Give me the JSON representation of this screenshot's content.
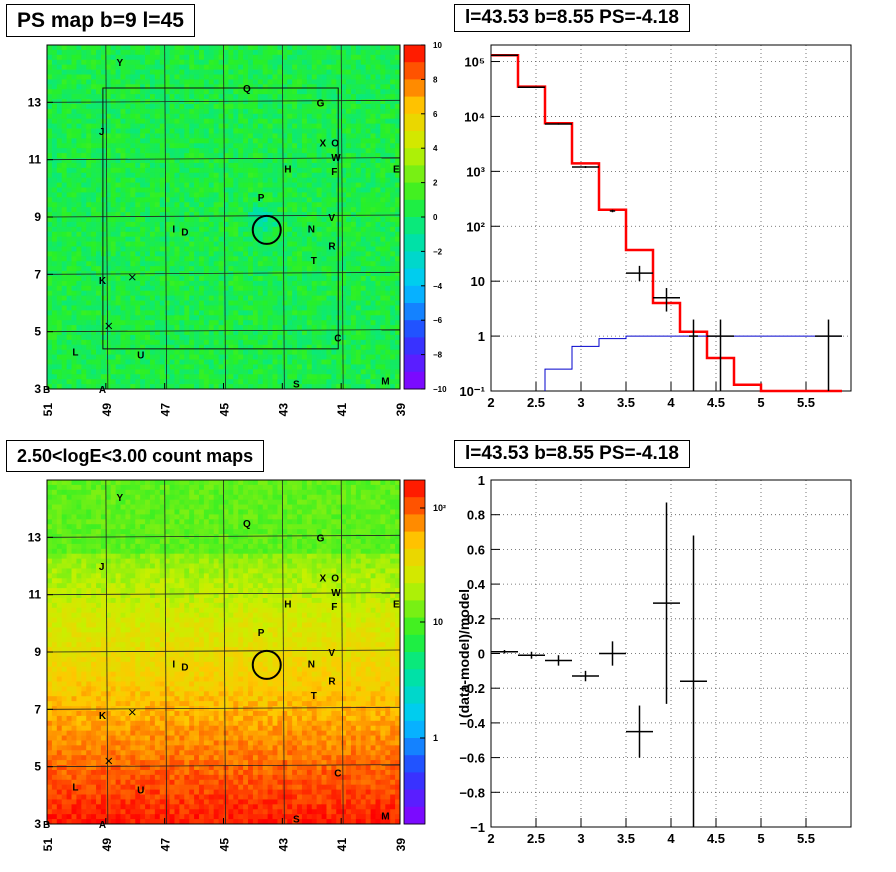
{
  "panels": {
    "ps_map_title": "PS map b=9 l=45",
    "count_map_title": "2.50<logE<3.00 count maps",
    "spectrum_title": "l=43.53 b=8.55 PS=-4.18",
    "residual_title": "l=43.53 b=8.55 PS=-4.18"
  },
  "colors": {
    "data": "#000000",
    "model": "#ff0000",
    "component": "#0000cc",
    "grid": "#555555"
  },
  "chart_data": [
    {
      "type": "heatmap",
      "title": "PS map b=9 l=45",
      "x_ticks": [
        "51",
        "49",
        "47",
        "45",
        "43",
        "41",
        "39"
      ],
      "y_ticks": [
        "3",
        "5",
        "7",
        "9",
        "11",
        "13"
      ],
      "xlim": [
        51,
        39
      ],
      "ylim": [
        3,
        15
      ],
      "colorbar": {
        "range": [
          -10,
          10
        ],
        "ticks": [
          "10",
          "8",
          "6",
          "4",
          "2",
          "0",
          "−2",
          "−4",
          "−6",
          "−8",
          "−10"
        ]
      },
      "sources": [
        {
          "label": "Y",
          "l": 48.5,
          "b": 14.4
        },
        {
          "label": "Q",
          "l": 44.2,
          "b": 13.5
        },
        {
          "label": "G",
          "l": 41.7,
          "b": 13.0
        },
        {
          "label": "J",
          "l": 49.1,
          "b": 12.0
        },
        {
          "label": "X",
          "l": 41.6,
          "b": 11.6
        },
        {
          "label": "O",
          "l": 41.2,
          "b": 11.6
        },
        {
          "label": "W",
          "l": 41.2,
          "b": 11.1
        },
        {
          "label": "H",
          "l": 42.8,
          "b": 10.7
        },
        {
          "label": "F",
          "l": 41.2,
          "b": 10.6
        },
        {
          "label": "E",
          "l": 39.1,
          "b": 10.7
        },
        {
          "label": "P",
          "l": 43.7,
          "b": 9.7
        },
        {
          "label": "V",
          "l": 41.3,
          "b": 9.0
        },
        {
          "label": "I",
          "l": 46.6,
          "b": 8.6
        },
        {
          "label": "D",
          "l": 46.3,
          "b": 8.5
        },
        {
          "label": "N",
          "l": 42.0,
          "b": 8.6
        },
        {
          "label": "R",
          "l": 41.3,
          "b": 8.0
        },
        {
          "label": "T",
          "l": 41.9,
          "b": 7.5
        },
        {
          "label": "K",
          "l": 49.1,
          "b": 6.8
        },
        {
          "label": "C",
          "l": 41.1,
          "b": 4.8
        },
        {
          "label": "L",
          "l": 50.0,
          "b": 4.3
        },
        {
          "label": "U",
          "l": 47.8,
          "b": 4.2
        },
        {
          "label": "M",
          "l": 39.5,
          "b": 3.3
        },
        {
          "label": "S",
          "l": 42.5,
          "b": 3.2
        },
        {
          "label": "A",
          "l": 49.1,
          "b": 3.0
        },
        {
          "label": "B",
          "l": 51.0,
          "b": 3.0
        }
      ]
    },
    {
      "type": "heatmap",
      "title": "2.50<logE<3.00 count maps",
      "x_ticks": [
        "51",
        "49",
        "47",
        "45",
        "43",
        "41",
        "39"
      ],
      "y_ticks": [
        "3",
        "5",
        "7",
        "9",
        "11",
        "13"
      ],
      "xlim": [
        51,
        39
      ],
      "ylim": [
        3,
        15
      ],
      "colorbar": {
        "log": true,
        "ticks": [
          "10²",
          "10",
          "1"
        ]
      }
    },
    {
      "type": "line",
      "title": "l=43.53 b=8.55 PS=-4.18",
      "log_y": true,
      "xlim": [
        2,
        6
      ],
      "ylim": [
        0.1,
        200000
      ],
      "x_ticks": [
        "2",
        "2.5",
        "3",
        "3.5",
        "4",
        "4.5",
        "5",
        "5.5"
      ],
      "y_ticks": [
        "10⁻¹",
        "1",
        "10",
        "10²",
        "10³",
        "10⁴",
        "10⁵"
      ],
      "grid": true,
      "series": [
        {
          "style": "step-model",
          "edges": [
            2.0,
            2.3,
            2.6,
            2.9,
            3.2,
            3.5,
            3.8,
            4.1,
            4.4,
            4.7,
            5.0,
            5.3,
            5.6,
            5.9
          ],
          "values": [
            130000,
            35000,
            7500,
            1400,
            200,
            37,
            4,
            1.2,
            0.4,
            0.13,
            0.1,
            0.1,
            0.1
          ]
        },
        {
          "style": "step-component",
          "edges": [
            2.6,
            2.9,
            3.2,
            3.5,
            3.8,
            4.1,
            4.4,
            5.9
          ],
          "values": [
            0.25,
            0.65,
            0.9,
            1.0,
            1.0,
            1.0,
            1.0
          ]
        },
        {
          "style": "data-points",
          "points": [
            {
              "x": 2.15,
              "y": 130000,
              "xerr": 0.15,
              "ylo": 129000,
              "yhi": 131000
            },
            {
              "x": 2.45,
              "y": 34000,
              "xerr": 0.15,
              "ylo": 33500,
              "yhi": 34500
            },
            {
              "x": 2.75,
              "y": 7300,
              "xerr": 0.15,
              "ylo": 7100,
              "yhi": 7500
            },
            {
              "x": 3.05,
              "y": 1200,
              "xerr": 0.15,
              "ylo": 1150,
              "yhi": 1250
            },
            {
              "x": 3.35,
              "y": 190,
              "xerr": 0.03,
              "ylo": 180,
              "yhi": 200
            },
            {
              "x": 3.65,
              "y": 14,
              "xerr": 0.15,
              "ylo": 10,
              "yhi": 19
            },
            {
              "x": 3.95,
              "y": 5,
              "xerr": 0.15,
              "ylo": 2.8,
              "yhi": 7.5
            },
            {
              "x": 4.25,
              "y": 1.0,
              "xerr": 0.05,
              "ylo": 0.1,
              "yhi": 2.0
            },
            {
              "x": 4.55,
              "y": 1.0,
              "xerr": 0.15,
              "ylo": 0.1,
              "yhi": 2.0
            },
            {
              "x": 5.75,
              "y": 1.0,
              "xerr": 0.15,
              "ylo": 0.1,
              "yhi": 2.0
            }
          ]
        }
      ]
    },
    {
      "type": "scatter",
      "title": "l=43.53 b=8.55 PS=-4.18",
      "ylabel": "(data-model)/model",
      "xlim": [
        2,
        6
      ],
      "ylim": [
        -1,
        1
      ],
      "x_ticks": [
        "2",
        "2.5",
        "3",
        "3.5",
        "4",
        "4.5",
        "5",
        "5.5"
      ],
      "y_ticks": [
        "−1",
        "−0.8",
        "−0.6",
        "−0.4",
        "−0.2",
        "0",
        "0.2",
        "0.4",
        "0.6",
        "0.8",
        "1"
      ],
      "grid": true,
      "points": [
        {
          "x": 2.15,
          "y": 0.01,
          "xerr": 0.15,
          "yerr": 0.01
        },
        {
          "x": 2.45,
          "y": -0.01,
          "xerr": 0.15,
          "yerr": 0.02
        },
        {
          "x": 2.75,
          "y": -0.04,
          "xerr": 0.15,
          "yerr": 0.03
        },
        {
          "x": 3.05,
          "y": -0.13,
          "xerr": 0.15,
          "yerr": 0.03
        },
        {
          "x": 3.35,
          "y": 0.0,
          "xerr": 0.15,
          "yerr": 0.07
        },
        {
          "x": 3.65,
          "y": -0.45,
          "xerr": 0.15,
          "yerr": 0.15
        },
        {
          "x": 3.95,
          "y": 0.29,
          "xerr": 0.15,
          "yerr": 0.58
        },
        {
          "x": 4.25,
          "y": -0.16,
          "xerr": 0.15,
          "yerr": 0.84
        }
      ]
    }
  ]
}
